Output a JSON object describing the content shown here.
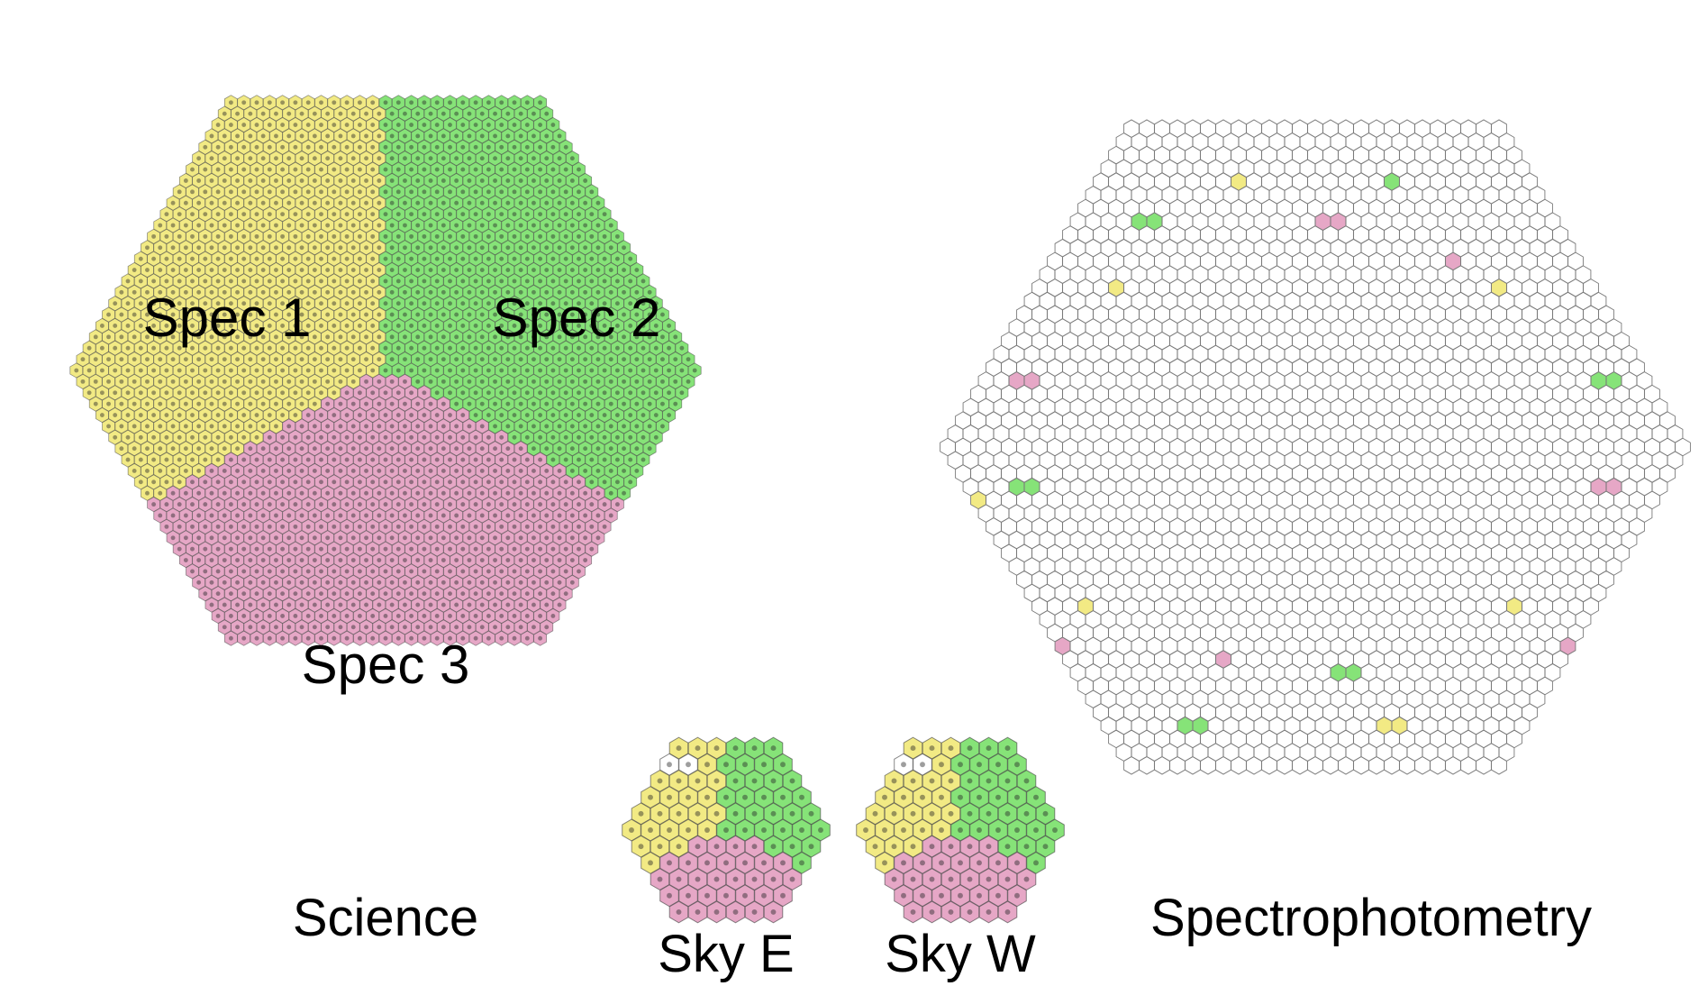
{
  "colors": {
    "spec1": "#f2ea84",
    "spec2": "#86e378",
    "spec3": "#e6a7c6",
    "empty": "#ffffff",
    "outline": "#7a7a7a"
  },
  "science": {
    "caption": "Science",
    "regions": [
      {
        "label": "Spec 1",
        "color": "spec1"
      },
      {
        "label": "Spec 2",
        "color": "spec2"
      },
      {
        "label": "Spec 3",
        "color": "spec3"
      }
    ]
  },
  "sky_e": {
    "caption": "Sky E"
  },
  "sky_w": {
    "caption": "Sky W"
  },
  "spectrophotometry": {
    "caption": "Spectrophotometry"
  }
}
